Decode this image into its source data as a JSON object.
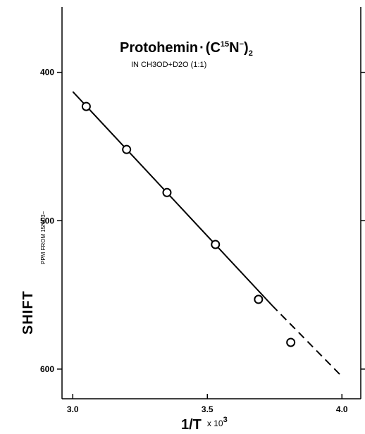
{
  "chart_data": {
    "type": "scatter",
    "title": {
      "main": "Protohemin",
      "dot": "·",
      "open": "(C",
      "isotope": "15",
      "anion": "N",
      "charge": "−",
      "close": ")",
      "subscript": "2"
    },
    "subtitle": "IN CH3OD+D2O (1:1)",
    "ylabel": "SHIFT",
    "yunit": "PPM FROM 15NO3−",
    "xlabel": {
      "main": "1/T",
      "multiplier": "x 10",
      "exponent": "3"
    },
    "xlim": [
      2.96,
      4.07
    ],
    "ylim": [
      356,
      620
    ],
    "y_inverted": true,
    "xticks": [
      {
        "value": 3.0,
        "label": "3.0"
      },
      {
        "value": 3.5,
        "label": "3.5"
      },
      {
        "value": 4.0,
        "label": "4.0"
      }
    ],
    "yticks": [
      {
        "value": 400,
        "label": "400"
      },
      {
        "value": 500,
        "label": "500"
      },
      {
        "value": 600,
        "label": "600"
      }
    ],
    "points": [
      {
        "x": 3.05,
        "y": 423
      },
      {
        "x": 3.2,
        "y": 452
      },
      {
        "x": 3.35,
        "y": 481
      },
      {
        "x": 3.53,
        "y": 516
      },
      {
        "x": 3.69,
        "y": 553
      },
      {
        "x": 3.81,
        "y": 582
      }
    ],
    "fit_line": {
      "x": [
        3.0,
        3.74
      ],
      "y": [
        413,
        557
      ]
    },
    "extrapolation": {
      "x": [
        3.74,
        4.0
      ],
      "y": [
        557,
        605
      ]
    }
  }
}
